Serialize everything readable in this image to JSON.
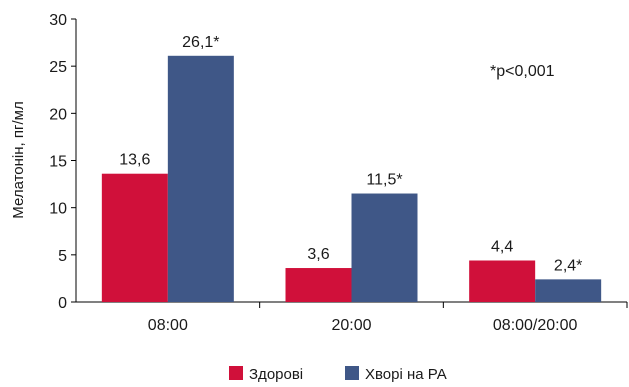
{
  "chart_data": {
    "type": "bar",
    "categories": [
      "08:00",
      "20:00",
      "08:00/20:00"
    ],
    "series": [
      {
        "name": "Здорові",
        "color": "#d0103a",
        "values": [
          13.6,
          3.6,
          4.4
        ],
        "labels": [
          "13,6",
          "3,6",
          "4,4"
        ]
      },
      {
        "name": "Хворі на РА",
        "color": "#3f5787",
        "values": [
          26.1,
          11.5,
          2.4
        ],
        "labels": [
          "26,1*",
          "11,5*",
          "2,4*"
        ]
      }
    ],
    "ylabel": "Мелатонін, пг/мл",
    "ylim": [
      0,
      30
    ],
    "yticks": [
      0,
      5,
      10,
      15,
      20,
      25,
      30
    ],
    "annotation": "*p<0,001",
    "legend_position": "bottom-center",
    "grid": false
  }
}
